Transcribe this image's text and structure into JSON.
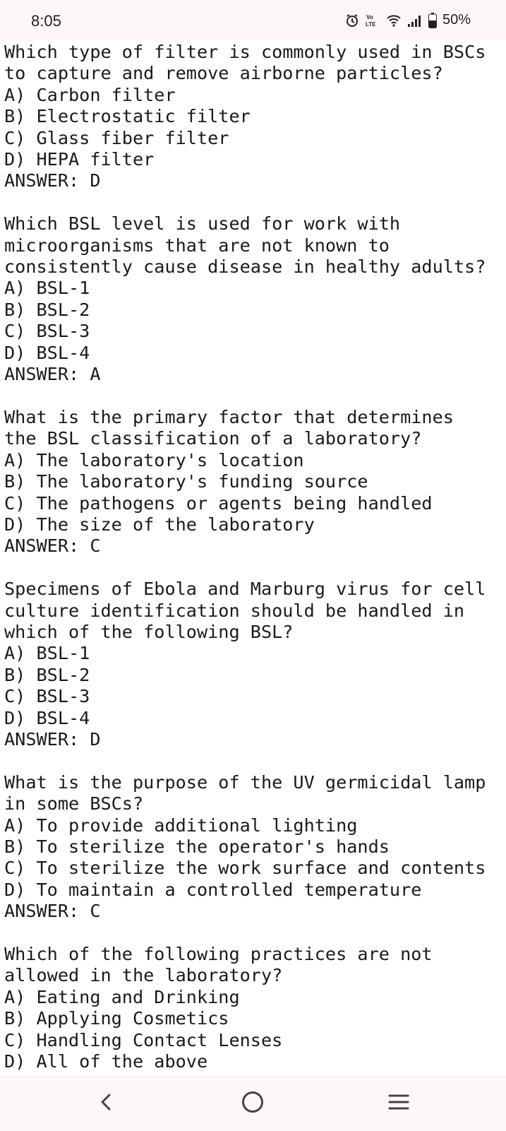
{
  "status": {
    "time": "8:05",
    "network_label": "Vo)) LTE",
    "battery": "50%",
    "icons": [
      "alarm-icon",
      "volte-icon",
      "wifi-icon",
      "signal-icon",
      "battery-icon"
    ]
  },
  "questions": [
    {
      "lines": [
        "Which type of filter is commonly used in BSCs",
        "to capture and remove airborne particles?"
      ],
      "options": [
        "A) Carbon filter",
        "B) Electrostatic filter",
        "C) Glass fiber filter",
        "D) HEPA filter"
      ],
      "answer": "ANSWER: D"
    },
    {
      "lines": [
        "Which BSL level is used for work with",
        "microorganisms that are not known to",
        "consistently cause disease in healthy adults?"
      ],
      "options": [
        "A) BSL-1",
        "B) BSL-2",
        "C) BSL-3",
        "D) BSL-4"
      ],
      "answer": "ANSWER: A"
    },
    {
      "lines": [
        "What is the primary factor that determines",
        "the BSL classification of a laboratory?"
      ],
      "options": [
        "A) The laboratory's location",
        "B) The laboratory's funding source",
        "C) The pathogens or agents being handled",
        "D) The size of the laboratory"
      ],
      "answer": "ANSWER: C"
    },
    {
      "lines": [
        "Specimens of Ebola and Marburg virus for cell",
        "culture identification should be handled in",
        "which of the following BSL?"
      ],
      "options": [
        "A) BSL-1",
        "B) BSL-2",
        "C) BSL-3",
        "D) BSL-4"
      ],
      "answer": "ANSWER: D"
    },
    {
      "lines": [
        "What is the purpose of the UV germicidal lamp",
        "in some BSCs?"
      ],
      "options": [
        "A) To provide additional lighting",
        "B) To sterilize the operator's hands",
        "C) To sterilize the work surface and contents",
        "D) To maintain a controlled temperature"
      ],
      "answer": "ANSWER: C"
    },
    {
      "lines": [
        "Which of the following practices are not",
        "allowed in the laboratory?"
      ],
      "options": [
        "A) Eating and Drinking",
        "B) Applying Cosmetics",
        "C) Handling Contact Lenses",
        "D) All of the above"
      ],
      "answer": ""
    }
  ],
  "nav": {
    "icons": [
      "back-icon",
      "home-icon",
      "recents-icon"
    ]
  }
}
